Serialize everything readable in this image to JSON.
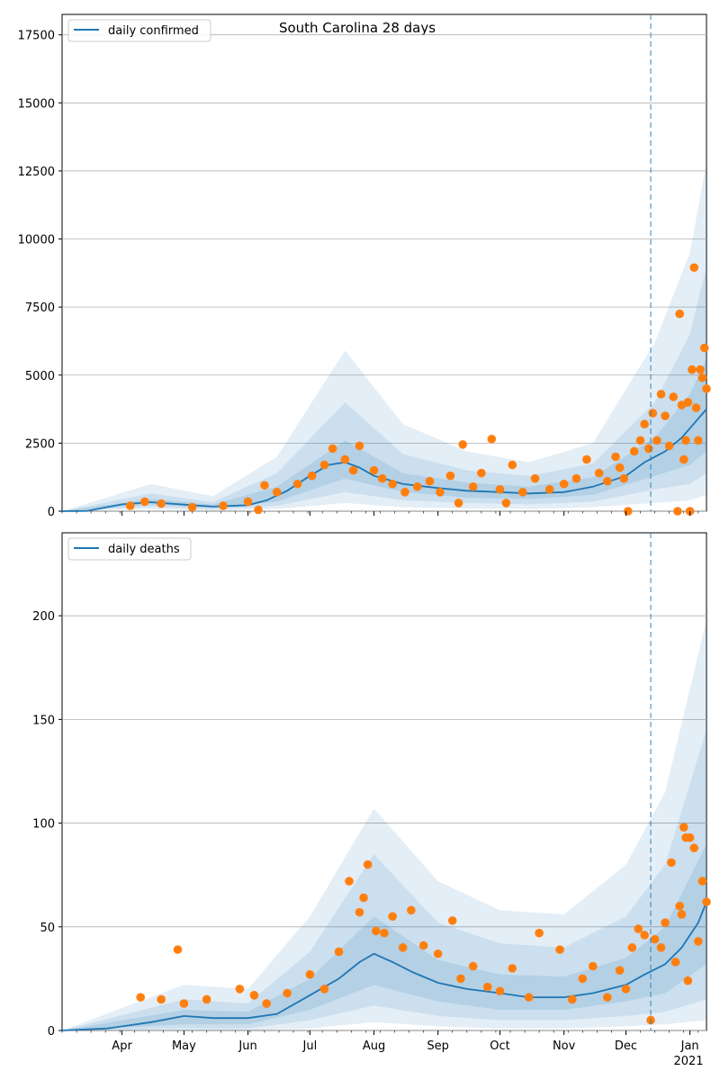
{
  "figure": {
    "title": "South Carolina 28 days",
    "forecast_marker_date": "2020-12-13"
  },
  "colors": {
    "line": "#1f77b4",
    "points": "#ff7f0e",
    "band": "#1f77b4",
    "grid": "#b0b0b0"
  },
  "x_axis": {
    "ticks": [
      {
        "date": "2020-04-01",
        "label": "Apr"
      },
      {
        "date": "2020-05-01",
        "label": "May"
      },
      {
        "date": "2020-06-01",
        "label": "Jun"
      },
      {
        "date": "2020-07-01",
        "label": "Jul"
      },
      {
        "date": "2020-08-01",
        "label": "Aug"
      },
      {
        "date": "2020-09-01",
        "label": "Sep"
      },
      {
        "date": "2020-10-01",
        "label": "Oct"
      },
      {
        "date": "2020-11-01",
        "label": "Nov"
      },
      {
        "date": "2020-12-01",
        "label": "Dec"
      },
      {
        "date": "2021-01-01",
        "label": "Jan"
      }
    ],
    "year_label": "2021"
  },
  "chart_data": [
    {
      "type": "line",
      "title": "South Carolina 28 days",
      "legend": "top-left",
      "grid": "horizontal",
      "xlim": [
        "2020-03-03",
        "2021-01-09"
      ],
      "ylim": [
        0,
        18250
      ],
      "yticks": [
        0,
        2500,
        5000,
        7500,
        10000,
        12500,
        15000,
        17500
      ],
      "series": [
        {
          "name": "daily confirmed",
          "mean": [
            [
              "2020-03-03",
              0
            ],
            [
              "2020-03-15",
              10
            ],
            [
              "2020-04-01",
              250
            ],
            [
              "2020-04-15",
              330
            ],
            [
              "2020-05-01",
              240
            ],
            [
              "2020-05-15",
              170
            ],
            [
              "2020-06-01",
              220
            ],
            [
              "2020-06-10",
              400
            ],
            [
              "2020-06-20",
              750
            ],
            [
              "2020-07-01",
              1300
            ],
            [
              "2020-07-10",
              1700
            ],
            [
              "2020-07-18",
              1800
            ],
            [
              "2020-07-25",
              1600
            ],
            [
              "2020-08-01",
              1300
            ],
            [
              "2020-08-15",
              1000
            ],
            [
              "2020-09-01",
              850
            ],
            [
              "2020-09-15",
              750
            ],
            [
              "2020-10-01",
              700
            ],
            [
              "2020-10-15",
              650
            ],
            [
              "2020-11-01",
              700
            ],
            [
              "2020-11-15",
              900
            ],
            [
              "2020-12-01",
              1300
            ],
            [
              "2020-12-10",
              1800
            ],
            [
              "2020-12-20",
              2200
            ],
            [
              "2020-12-28",
              2700
            ],
            [
              "2021-01-05",
              3400
            ],
            [
              "2021-01-09",
              3750
            ]
          ],
          "band_inner": [
            [
              "2020-03-03",
              0,
              0
            ],
            [
              "2020-04-15",
              250,
              450
            ],
            [
              "2020-05-15",
              120,
              240
            ],
            [
              "2020-06-15",
              350,
              900
            ],
            [
              "2020-07-18",
              1200,
              2600
            ],
            [
              "2020-08-15",
              700,
              1400
            ],
            [
              "2020-09-15",
              500,
              1050
            ],
            [
              "2020-10-15",
              450,
              900
            ],
            [
              "2020-11-15",
              600,
              1250
            ],
            [
              "2020-12-15",
              1300,
              2700
            ],
            [
              "2021-01-01",
              1700,
              4300
            ],
            [
              "2021-01-09",
              2200,
              5600
            ]
          ],
          "band_mid": [
            [
              "2020-03-03",
              0,
              0
            ],
            [
              "2020-04-15",
              170,
              650
            ],
            [
              "2020-05-15",
              70,
              330
            ],
            [
              "2020-06-15",
              200,
              1400
            ],
            [
              "2020-07-18",
              700,
              4000
            ],
            [
              "2020-08-15",
              400,
              2100
            ],
            [
              "2020-09-15",
              300,
              1500
            ],
            [
              "2020-10-15",
              250,
              1300
            ],
            [
              "2020-11-15",
              350,
              1750
            ],
            [
              "2020-12-15",
              800,
              4000
            ],
            [
              "2021-01-01",
              1000,
              6500
            ],
            [
              "2021-01-09",
              1400,
              9000
            ]
          ],
          "band_outer": [
            [
              "2020-03-03",
              0,
              0
            ],
            [
              "2020-04-15",
              80,
              1000
            ],
            [
              "2020-05-15",
              20,
              550
            ],
            [
              "2020-06-15",
              80,
              2000
            ],
            [
              "2020-07-18",
              300,
              5900
            ],
            [
              "2020-08-15",
              150,
              3200
            ],
            [
              "2020-09-15",
              100,
              2200
            ],
            [
              "2020-10-15",
              80,
              1800
            ],
            [
              "2020-11-15",
              150,
              2500
            ],
            [
              "2020-12-15",
              300,
              6200
            ],
            [
              "2021-01-01",
              400,
              9500
            ],
            [
              "2021-01-09",
              600,
              12800
            ]
          ]
        }
      ],
      "observed": [
        [
          "2020-04-05",
          200
        ],
        [
          "2020-04-12",
          350
        ],
        [
          "2020-04-20",
          280
        ],
        [
          "2020-05-05",
          150
        ],
        [
          "2020-05-20",
          200
        ],
        [
          "2020-06-01",
          350
        ],
        [
          "2020-06-06",
          50
        ],
        [
          "2020-06-09",
          950
        ],
        [
          "2020-06-15",
          700
        ],
        [
          "2020-06-25",
          1000
        ],
        [
          "2020-07-02",
          1300
        ],
        [
          "2020-07-08",
          1700
        ],
        [
          "2020-07-12",
          2300
        ],
        [
          "2020-07-18",
          1900
        ],
        [
          "2020-07-22",
          1500
        ],
        [
          "2020-07-25",
          2400
        ],
        [
          "2020-08-01",
          1500
        ],
        [
          "2020-08-05",
          1200
        ],
        [
          "2020-08-10",
          1000
        ],
        [
          "2020-08-16",
          700
        ],
        [
          "2020-08-22",
          900
        ],
        [
          "2020-08-28",
          1100
        ],
        [
          "2020-09-02",
          700
        ],
        [
          "2020-09-07",
          1300
        ],
        [
          "2020-09-11",
          300
        ],
        [
          "2020-09-13",
          2450
        ],
        [
          "2020-09-18",
          900
        ],
        [
          "2020-09-22",
          1400
        ],
        [
          "2020-09-27",
          2650
        ],
        [
          "2020-10-01",
          800
        ],
        [
          "2020-10-04",
          300
        ],
        [
          "2020-10-07",
          1700
        ],
        [
          "2020-10-12",
          700
        ],
        [
          "2020-10-18",
          1200
        ],
        [
          "2020-10-25",
          800
        ],
        [
          "2020-11-01",
          1000
        ],
        [
          "2020-11-07",
          1200
        ],
        [
          "2020-11-12",
          1900
        ],
        [
          "2020-11-18",
          1400
        ],
        [
          "2020-11-22",
          1100
        ],
        [
          "2020-11-26",
          2000
        ],
        [
          "2020-11-28",
          1600
        ],
        [
          "2020-11-30",
          1200
        ],
        [
          "2020-12-02",
          0
        ],
        [
          "2020-12-05",
          2200
        ],
        [
          "2020-12-08",
          2600
        ],
        [
          "2020-12-10",
          3200
        ],
        [
          "2020-12-12",
          2300
        ],
        [
          "2020-12-14",
          3600
        ],
        [
          "2020-12-16",
          2600
        ],
        [
          "2020-12-18",
          4300
        ],
        [
          "2020-12-20",
          3500
        ],
        [
          "2020-12-22",
          2400
        ],
        [
          "2020-12-24",
          4200
        ],
        [
          "2020-12-26",
          0
        ],
        [
          "2020-12-27",
          7250
        ],
        [
          "2020-12-28",
          3900
        ],
        [
          "2020-12-29",
          1900
        ],
        [
          "2020-12-30",
          2600
        ],
        [
          "2020-12-31",
          4000
        ],
        [
          "2021-01-01",
          0
        ],
        [
          "2021-01-02",
          5200
        ],
        [
          "2021-01-03",
          8950
        ],
        [
          "2021-01-04",
          3800
        ],
        [
          "2021-01-05",
          2600
        ],
        [
          "2021-01-06",
          5200
        ],
        [
          "2021-01-07",
          4900
        ],
        [
          "2021-01-08",
          6000
        ],
        [
          "2021-01-09",
          4500
        ]
      ]
    },
    {
      "type": "line",
      "legend": "top-left",
      "grid": "horizontal",
      "xlim": [
        "2020-03-03",
        "2021-01-09"
      ],
      "ylim": [
        0,
        240
      ],
      "yticks": [
        0,
        50,
        100,
        150,
        200
      ],
      "series": [
        {
          "name": "daily deaths",
          "mean": [
            [
              "2020-03-03",
              0
            ],
            [
              "2020-03-25",
              1
            ],
            [
              "2020-04-15",
              4
            ],
            [
              "2020-05-01",
              7
            ],
            [
              "2020-05-15",
              6
            ],
            [
              "2020-06-01",
              6
            ],
            [
              "2020-06-15",
              8
            ],
            [
              "2020-07-01",
              17
            ],
            [
              "2020-07-15",
              25
            ],
            [
              "2020-07-25",
              33
            ],
            [
              "2020-08-01",
              37
            ],
            [
              "2020-08-10",
              33
            ],
            [
              "2020-08-20",
              28
            ],
            [
              "2020-09-01",
              23
            ],
            [
              "2020-09-15",
              20
            ],
            [
              "2020-10-01",
              18
            ],
            [
              "2020-10-15",
              16
            ],
            [
              "2020-11-01",
              16
            ],
            [
              "2020-11-15",
              18
            ],
            [
              "2020-12-01",
              22
            ],
            [
              "2020-12-10",
              27
            ],
            [
              "2020-12-20",
              32
            ],
            [
              "2020-12-28",
              40
            ],
            [
              "2021-01-05",
              52
            ],
            [
              "2021-01-09",
              62
            ]
          ],
          "band_inner": [
            [
              "2020-03-03",
              0,
              0
            ],
            [
              "2020-05-01",
              3,
              10
            ],
            [
              "2020-06-01",
              3,
              9
            ],
            [
              "2020-07-01",
              10,
              25
            ],
            [
              "2020-08-01",
              22,
              55
            ],
            [
              "2020-09-01",
              14,
              34
            ],
            [
              "2020-10-01",
              10,
              27
            ],
            [
              "2020-11-01",
              10,
              26
            ],
            [
              "2020-12-01",
              14,
              35
            ],
            [
              "2020-12-20",
              18,
              50
            ],
            [
              "2021-01-09",
              32,
              90
            ]
          ],
          "band_mid": [
            [
              "2020-03-03",
              0,
              0
            ],
            [
              "2020-05-01",
              1,
              15
            ],
            [
              "2020-06-01",
              1,
              13
            ],
            [
              "2020-07-01",
              5,
              38
            ],
            [
              "2020-08-01",
              12,
              85
            ],
            [
              "2020-09-01",
              7,
              52
            ],
            [
              "2020-10-01",
              5,
              42
            ],
            [
              "2020-11-01",
              5,
              40
            ],
            [
              "2020-12-01",
              7,
              55
            ],
            [
              "2020-12-20",
              9,
              80
            ],
            [
              "2021-01-09",
              15,
              145
            ]
          ],
          "band_outer": [
            [
              "2020-03-03",
              0,
              0
            ],
            [
              "2020-05-01",
              0,
              22
            ],
            [
              "2020-06-01",
              0,
              20
            ],
            [
              "2020-07-01",
              1,
              55
            ],
            [
              "2020-08-01",
              4,
              107
            ],
            [
              "2020-09-01",
              2,
              72
            ],
            [
              "2020-10-01",
              1,
              58
            ],
            [
              "2020-11-01",
              1,
              56
            ],
            [
              "2020-12-01",
              2,
              80
            ],
            [
              "2020-12-20",
              3,
              115
            ],
            [
              "2021-01-09",
              5,
              198
            ]
          ]
        }
      ],
      "observed": [
        [
          "2020-04-10",
          16
        ],
        [
          "2020-04-20",
          15
        ],
        [
          "2020-04-28",
          39
        ],
        [
          "2020-05-01",
          13
        ],
        [
          "2020-05-12",
          15
        ],
        [
          "2020-05-28",
          20
        ],
        [
          "2020-06-04",
          17
        ],
        [
          "2020-06-10",
          13
        ],
        [
          "2020-06-20",
          18
        ],
        [
          "2020-07-01",
          27
        ],
        [
          "2020-07-08",
          20
        ],
        [
          "2020-07-15",
          38
        ],
        [
          "2020-07-20",
          72
        ],
        [
          "2020-07-25",
          57
        ],
        [
          "2020-07-27",
          64
        ],
        [
          "2020-07-29",
          80
        ],
        [
          "2020-08-02",
          48
        ],
        [
          "2020-08-06",
          47
        ],
        [
          "2020-08-10",
          55
        ],
        [
          "2020-08-15",
          40
        ],
        [
          "2020-08-19",
          58
        ],
        [
          "2020-08-25",
          41
        ],
        [
          "2020-09-01",
          37
        ],
        [
          "2020-09-08",
          53
        ],
        [
          "2020-09-12",
          25
        ],
        [
          "2020-09-18",
          31
        ],
        [
          "2020-09-25",
          21
        ],
        [
          "2020-10-01",
          19
        ],
        [
          "2020-10-07",
          30
        ],
        [
          "2020-10-15",
          16
        ],
        [
          "2020-10-20",
          47
        ],
        [
          "2020-10-30",
          39
        ],
        [
          "2020-11-05",
          15
        ],
        [
          "2020-11-10",
          25
        ],
        [
          "2020-11-15",
          31
        ],
        [
          "2020-11-22",
          16
        ],
        [
          "2020-11-28",
          29
        ],
        [
          "2020-12-01",
          20
        ],
        [
          "2020-12-04",
          40
        ],
        [
          "2020-12-07",
          49
        ],
        [
          "2020-12-10",
          46
        ],
        [
          "2020-12-13",
          5
        ],
        [
          "2020-12-15",
          44
        ],
        [
          "2020-12-18",
          40
        ],
        [
          "2020-12-20",
          52
        ],
        [
          "2020-12-23",
          81
        ],
        [
          "2020-12-25",
          33
        ],
        [
          "2020-12-27",
          60
        ],
        [
          "2020-12-28",
          56
        ],
        [
          "2020-12-29",
          98
        ],
        [
          "2020-12-30",
          93
        ],
        [
          "2020-12-31",
          24
        ],
        [
          "2021-01-01",
          93
        ],
        [
          "2021-01-03",
          88
        ],
        [
          "2021-01-05",
          43
        ],
        [
          "2021-01-07",
          72
        ],
        [
          "2021-01-09",
          62
        ]
      ]
    }
  ]
}
